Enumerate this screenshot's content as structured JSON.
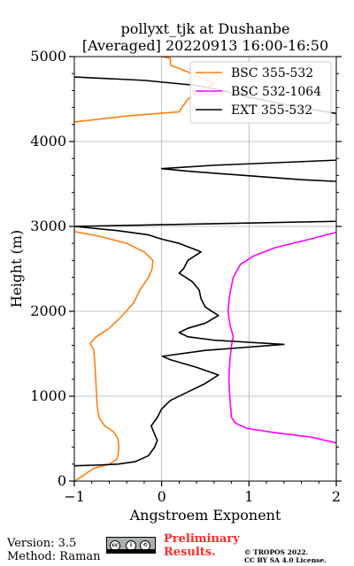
{
  "chart_data": {
    "type": "line",
    "title": "pollyxt_tjk at Dushanbe",
    "subtitle": "[Averaged] 20220913 16:00-16:50",
    "xlabel": "Angstroem Exponent",
    "ylabel": "Height (m)",
    "xlim": [
      -1,
      2
    ],
    "ylim": [
      0,
      5000
    ],
    "xticks": [
      -1,
      0,
      1,
      2
    ],
    "xtick_labels": [
      "−1",
      "0",
      "1",
      "2"
    ],
    "yticks": [
      0,
      1000,
      2000,
      3000,
      4000,
      5000
    ],
    "ytick_labels": [
      "0",
      "1000",
      "2000",
      "3000",
      "4000",
      "5000"
    ],
    "grid": true,
    "legend_position": "top-right",
    "colors": {
      "BSC 355-532": "#ff7f0e",
      "BSC 532-1064": "#ff00ff",
      "EXT 355-532": "#000000"
    },
    "series": [
      {
        "name": "BSC 355-532",
        "points": [
          [
            -1.0,
            0
          ],
          [
            -0.92,
            50
          ],
          [
            -0.85,
            100
          ],
          [
            -0.78,
            150
          ],
          [
            -0.6,
            200
          ],
          [
            -0.52,
            250
          ],
          [
            -0.5,
            300
          ],
          [
            -0.49,
            400
          ],
          [
            -0.5,
            500
          ],
          [
            -0.55,
            580
          ],
          [
            -0.65,
            650
          ],
          [
            -0.72,
            750
          ],
          [
            -0.74,
            900
          ],
          [
            -0.75,
            1100
          ],
          [
            -0.76,
            1300
          ],
          [
            -0.77,
            1450
          ],
          [
            -0.78,
            1550
          ],
          [
            -0.82,
            1620
          ],
          [
            -0.75,
            1700
          ],
          [
            -0.6,
            1800
          ],
          [
            -0.45,
            1950
          ],
          [
            -0.32,
            2100
          ],
          [
            -0.25,
            2250
          ],
          [
            -0.15,
            2400
          ],
          [
            -0.11,
            2500
          ],
          [
            -0.1,
            2600
          ],
          [
            -0.2,
            2700
          ],
          [
            -0.4,
            2800
          ],
          [
            -0.7,
            2880
          ],
          [
            -1.0,
            2940
          ]
        ]
      },
      {
        "name": "BSC 532-1064",
        "points": [
          [
            2.0,
            450
          ],
          [
            1.7,
            520
          ],
          [
            1.3,
            570
          ],
          [
            0.98,
            620
          ],
          [
            0.85,
            680
          ],
          [
            0.8,
            750
          ],
          [
            0.78,
            1000
          ],
          [
            0.77,
            1200
          ],
          [
            0.78,
            1400
          ],
          [
            0.8,
            1600
          ],
          [
            0.82,
            1700
          ],
          [
            0.78,
            1850
          ],
          [
            0.76,
            2000
          ],
          [
            0.78,
            2200
          ],
          [
            0.82,
            2400
          ],
          [
            0.9,
            2550
          ],
          [
            1.05,
            2650
          ],
          [
            1.3,
            2750
          ],
          [
            1.7,
            2850
          ],
          [
            2.0,
            2930
          ]
        ]
      },
      {
        "name": "EXT 355-532",
        "points": [
          [
            -1.0,
            180
          ],
          [
            -0.7,
            190
          ],
          [
            -0.5,
            200
          ],
          [
            -0.3,
            230
          ],
          [
            -0.15,
            300
          ],
          [
            -0.08,
            400
          ],
          [
            -0.05,
            480
          ],
          [
            -0.08,
            550
          ],
          [
            -0.12,
            650
          ],
          [
            -0.05,
            750
          ],
          [
            0.0,
            850
          ],
          [
            0.1,
            950
          ],
          [
            0.3,
            1050
          ],
          [
            0.5,
            1150
          ],
          [
            0.65,
            1250
          ],
          [
            0.4,
            1340
          ],
          [
            0.1,
            1430
          ],
          [
            0.01,
            1470
          ],
          [
            0.5,
            1540
          ],
          [
            1.4,
            1610
          ],
          [
            0.6,
            1660
          ],
          [
            0.3,
            1700
          ],
          [
            0.2,
            1750
          ],
          [
            0.3,
            1800
          ],
          [
            0.5,
            1860
          ],
          [
            0.65,
            1950
          ],
          [
            0.5,
            2050
          ],
          [
            0.45,
            2150
          ],
          [
            0.43,
            2250
          ],
          [
            0.35,
            2350
          ],
          [
            0.2,
            2450
          ],
          [
            0.25,
            2500
          ],
          [
            0.3,
            2600
          ],
          [
            0.45,
            2700
          ],
          [
            0.3,
            2760
          ],
          [
            0.2,
            2800
          ],
          [
            0.0,
            2850
          ],
          [
            -0.15,
            2900
          ],
          [
            -0.5,
            2950
          ],
          [
            -1.0,
            3000
          ],
          [
            1.0,
            3040
          ],
          [
            2.0,
            3060
          ]
        ]
      },
      {
        "name": "EXT 355-532",
        "points": [
          [
            2.0,
            3530
          ],
          [
            1.6,
            3550
          ],
          [
            0.3,
            3650
          ],
          [
            0.0,
            3680
          ],
          [
            0.6,
            3720
          ],
          [
            2.0,
            3780
          ]
        ]
      },
      {
        "name": "EXT 355-532",
        "points": [
          [
            2.0,
            4330
          ],
          [
            1.6,
            4400
          ],
          [
            1.0,
            4520
          ],
          [
            0.7,
            4600
          ],
          [
            0.4,
            4660
          ],
          [
            -0.2,
            4720
          ],
          [
            -1.0,
            4760
          ]
        ]
      },
      {
        "name": "BSC 355-532",
        "points": [
          [
            -1.0,
            4230
          ],
          [
            -0.4,
            4300
          ],
          [
            0.2,
            4350
          ],
          [
            0.3,
            4500
          ],
          [
            0.6,
            4680
          ],
          [
            0.3,
            4820
          ],
          [
            0.1,
            4900
          ],
          [
            0.1,
            4980
          ],
          [
            0.0,
            5000
          ]
        ]
      }
    ]
  },
  "footer": {
    "version": "Version: 3.5",
    "method": "Method: Raman",
    "license_badge": "cc-by-sa-badge",
    "preliminary_line1": "Preliminary",
    "preliminary_line2": "Results.",
    "copyright_line1": "© TROPOS 2022.",
    "copyright_line2": "CC BY SA 4.0 License."
  }
}
